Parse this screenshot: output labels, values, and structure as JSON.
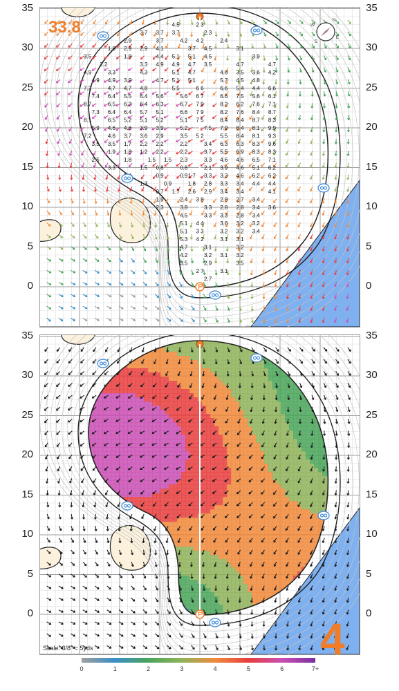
{
  "hole": {
    "number": "4",
    "total_length": "33.8"
  },
  "scale_note": "Scale: 3/8\" = 5yds",
  "y_axis_labels": [
    "35",
    "30",
    "25",
    "20",
    "15",
    "10",
    "5",
    "0"
  ],
  "compass": {
    "letters": [
      "N",
      "E",
      "S",
      "W"
    ]
  },
  "colorbar": {
    "labels": [
      "0",
      "1",
      "2",
      "3",
      "4",
      "5",
      "6",
      "7+"
    ],
    "colors": [
      "#9e9e9e",
      "#3b8fc9",
      "#4aa55a",
      "#8fb35a",
      "#f08a3c",
      "#e83e3e",
      "#c94fb4",
      "#7a2fa0"
    ]
  },
  "colors": {
    "green_outline": "#222222",
    "water": "#7fb0ef",
    "bunker": "#fbf1dc",
    "accent": "#f07d2a",
    "sprinkler": "#4a90d9"
  },
  "grid_values": [
    {
      "x": -3,
      "y": 33,
      "v": "4.5"
    },
    {
      "x": 0,
      "y": 33,
      "v": "2.3"
    },
    {
      "x": -7,
      "y": 32,
      "v": "3.7"
    },
    {
      "x": -5,
      "y": 32,
      "v": "3.7"
    },
    {
      "x": -3,
      "y": 32,
      "v": "3.7"
    },
    {
      "x": 1,
      "y": 32,
      "v": "2.3"
    },
    {
      "x": -9,
      "y": 31,
      "v": "2.9"
    },
    {
      "x": -5,
      "y": 31,
      "v": "3.7"
    },
    {
      "x": -2,
      "y": 31,
      "v": "4.2"
    },
    {
      "x": 0,
      "y": 31,
      "v": "4.2"
    },
    {
      "x": 3,
      "y": 31,
      "v": "2.4"
    },
    {
      "x": -11,
      "y": 30,
      "v": "1.8"
    },
    {
      "x": -9,
      "y": 30,
      "v": "2.9"
    },
    {
      "x": -7,
      "y": 30,
      "v": "2.9"
    },
    {
      "x": -5,
      "y": 30,
      "v": "4.1"
    },
    {
      "x": -1,
      "y": 30,
      "v": "3.7"
    },
    {
      "x": 1,
      "y": 30,
      "v": "4.5"
    },
    {
      "x": 5,
      "y": 30,
      "v": "3.1"
    },
    {
      "x": -14,
      "y": 29,
      "v": "3.5"
    },
    {
      "x": -9,
      "y": 29,
      "v": "1.8"
    },
    {
      "x": -5,
      "y": 29,
      "v": "4.4"
    },
    {
      "x": -3,
      "y": 29,
      "v": "5.1"
    },
    {
      "x": -1,
      "y": 29,
      "v": "5.1"
    },
    {
      "x": 1,
      "y": 29,
      "v": "4.5"
    },
    {
      "x": 7,
      "y": 29,
      "v": "3.9"
    },
    {
      "x": -12,
      "y": 28,
      "v": "2.2"
    },
    {
      "x": -7,
      "y": 28,
      "v": "3.3"
    },
    {
      "x": -5,
      "y": 28,
      "v": "4.9"
    },
    {
      "x": -3,
      "y": 28,
      "v": "4.9"
    },
    {
      "x": -1,
      "y": 28,
      "v": "4.7"
    },
    {
      "x": 1,
      "y": 28,
      "v": "3.5"
    },
    {
      "x": 5,
      "y": 28,
      "v": "4.7"
    },
    {
      "x": 9,
      "y": 28,
      "v": "4.7"
    },
    {
      "x": -14,
      "y": 27,
      "v": "4.9"
    },
    {
      "x": -11,
      "y": 27,
      "v": "3.3"
    },
    {
      "x": -7,
      "y": 27,
      "v": "4.3"
    },
    {
      "x": -3,
      "y": 27,
      "v": "5.1"
    },
    {
      "x": -1,
      "y": 27,
      "v": "4.7"
    },
    {
      "x": 3,
      "y": 27,
      "v": "4.6"
    },
    {
      "x": 5,
      "y": 27,
      "v": "3.5"
    },
    {
      "x": 7,
      "y": 27,
      "v": "3.6"
    },
    {
      "x": 9,
      "y": 27,
      "v": "4.2"
    },
    {
      "x": -13,
      "y": 26,
      "v": "4.9"
    },
    {
      "x": -11,
      "y": 26,
      "v": "4.9"
    },
    {
      "x": -9,
      "y": 26,
      "v": "3.9"
    },
    {
      "x": -5,
      "y": 26,
      "v": "4.7"
    },
    {
      "x": -3,
      "y": 26,
      "v": "5.1"
    },
    {
      "x": -1,
      "y": 26,
      "v": "5.1"
    },
    {
      "x": 3,
      "y": 26,
      "v": "5.7"
    },
    {
      "x": 5,
      "y": 26,
      "v": "4.5"
    },
    {
      "x": 7,
      "y": 26,
      "v": "4.8"
    },
    {
      "x": -14,
      "y": 25,
      "v": "7.2"
    },
    {
      "x": -11,
      "y": 25,
      "v": "4.7"
    },
    {
      "x": -9,
      "y": 25,
      "v": "4.7"
    },
    {
      "x": -7,
      "y": 25,
      "v": "4.8"
    },
    {
      "x": -3,
      "y": 25,
      "v": "5.5"
    },
    {
      "x": 0,
      "y": 25,
      "v": "6.6"
    },
    {
      "x": 3,
      "y": 25,
      "v": "6.6"
    },
    {
      "x": 5,
      "y": 25,
      "v": "5.4"
    },
    {
      "x": 7,
      "y": 25,
      "v": "4.4"
    },
    {
      "x": 9,
      "y": 25,
      "v": "6.6"
    },
    {
      "x": -13,
      "y": 24,
      "v": "7.4"
    },
    {
      "x": -11,
      "y": 24,
      "v": "6.4"
    },
    {
      "x": -9,
      "y": 24,
      "v": "5.5"
    },
    {
      "x": -7,
      "y": 24,
      "v": "6.4"
    },
    {
      "x": -5,
      "y": 24,
      "v": "5.6"
    },
    {
      "x": -2,
      "y": 24,
      "v": "5.6"
    },
    {
      "x": 0,
      "y": 24,
      "v": "6.7"
    },
    {
      "x": 3,
      "y": 24,
      "v": "6.6"
    },
    {
      "x": 5,
      "y": 24,
      "v": "7.5"
    },
    {
      "x": 7,
      "y": 24,
      "v": "5.6"
    },
    {
      "x": 9,
      "y": 24,
      "v": "6.1"
    },
    {
      "x": -14,
      "y": 23,
      "v": "8.7"
    },
    {
      "x": -11,
      "y": 23,
      "v": "6.5"
    },
    {
      "x": -9,
      "y": 23,
      "v": "6.3"
    },
    {
      "x": -7,
      "y": 23,
      "v": "6.4"
    },
    {
      "x": -5,
      "y": 23,
      "v": "6.3"
    },
    {
      "x": -2,
      "y": 23,
      "v": "6.7"
    },
    {
      "x": 0,
      "y": 23,
      "v": "7.9"
    },
    {
      "x": 3,
      "y": 23,
      "v": "8.2"
    },
    {
      "x": 5,
      "y": 23,
      "v": "6.2"
    },
    {
      "x": 7,
      "y": 23,
      "v": "7.6"
    },
    {
      "x": 9,
      "y": 23,
      "v": "7.1"
    },
    {
      "x": -13,
      "y": 22,
      "v": "7.3"
    },
    {
      "x": -11,
      "y": 22,
      "v": "6.4"
    },
    {
      "x": -9,
      "y": 22,
      "v": "6.4"
    },
    {
      "x": -7,
      "y": 22,
      "v": "5.7"
    },
    {
      "x": -5,
      "y": 22,
      "v": "5.1"
    },
    {
      "x": -2,
      "y": 22,
      "v": "6.6"
    },
    {
      "x": 0,
      "y": 22,
      "v": "7.9"
    },
    {
      "x": 3,
      "y": 22,
      "v": "8.2"
    },
    {
      "x": 5,
      "y": 22,
      "v": "7.6"
    },
    {
      "x": 7,
      "y": 22,
      "v": "8.4"
    },
    {
      "x": 9,
      "y": 22,
      "v": "8.7"
    },
    {
      "x": -14,
      "y": 21,
      "v": "8.1"
    },
    {
      "x": -11,
      "y": 21,
      "v": "6.5"
    },
    {
      "x": -9,
      "y": 21,
      "v": "5.2"
    },
    {
      "x": -7,
      "y": 21,
      "v": "5.1"
    },
    {
      "x": -5,
      "y": 21,
      "v": "5.2"
    },
    {
      "x": -2,
      "y": 21,
      "v": "5.1"
    },
    {
      "x": 0,
      "y": 21,
      "v": "7.5"
    },
    {
      "x": 3,
      "y": 21,
      "v": "8.4"
    },
    {
      "x": 5,
      "y": 21,
      "v": "8.4"
    },
    {
      "x": 7,
      "y": 21,
      "v": "8.7"
    },
    {
      "x": 9,
      "y": 21,
      "v": "8.3"
    },
    {
      "x": -13,
      "y": 20,
      "v": "5.9"
    },
    {
      "x": -11,
      "y": 20,
      "v": "4.6"
    },
    {
      "x": -9,
      "y": 20,
      "v": "4.6"
    },
    {
      "x": -7,
      "y": 20,
      "v": "3.9"
    },
    {
      "x": -5,
      "y": 20,
      "v": "3.9"
    },
    {
      "x": -2,
      "y": 20,
      "v": "5.2"
    },
    {
      "x": 1,
      "y": 20,
      "v": "7.5"
    },
    {
      "x": 3,
      "y": 20,
      "v": "7.9"
    },
    {
      "x": 5,
      "y": 20,
      "v": "8.4"
    },
    {
      "x": 7,
      "y": 20,
      "v": "8.1"
    },
    {
      "x": 9,
      "y": 20,
      "v": "9.9"
    },
    {
      "x": -14,
      "y": 19,
      "v": "7.2"
    },
    {
      "x": -11,
      "y": 19,
      "v": "4.6"
    },
    {
      "x": -9,
      "y": 19,
      "v": "3.7"
    },
    {
      "x": -7,
      "y": 19,
      "v": "3.6"
    },
    {
      "x": -5,
      "y": 19,
      "v": "2.9"
    },
    {
      "x": -2,
      "y": 19,
      "v": "3.5"
    },
    {
      "x": 0,
      "y": 19,
      "v": "5.2"
    },
    {
      "x": 3,
      "y": 19,
      "v": "5.5"
    },
    {
      "x": 5,
      "y": 19,
      "v": "8.4"
    },
    {
      "x": 7,
      "y": 19,
      "v": "8.1"
    },
    {
      "x": 9,
      "y": 19,
      "v": "9.3"
    },
    {
      "x": -13,
      "y": 18,
      "v": "3.5"
    },
    {
      "x": -11,
      "y": 18,
      "v": "3.5"
    },
    {
      "x": -9,
      "y": 18,
      "v": "1.7"
    },
    {
      "x": -7,
      "y": 18,
      "v": "2.2"
    },
    {
      "x": -5,
      "y": 18,
      "v": "2.2"
    },
    {
      "x": -2,
      "y": 18,
      "v": "2.2"
    },
    {
      "x": 1,
      "y": 18,
      "v": "3.4"
    },
    {
      "x": 3,
      "y": 18,
      "v": "6.3"
    },
    {
      "x": 5,
      "y": 18,
      "v": "6.3"
    },
    {
      "x": 7,
      "y": 18,
      "v": "8.3"
    },
    {
      "x": 9,
      "y": 18,
      "v": "9.6"
    },
    {
      "x": -11,
      "y": 17,
      "v": "1.9"
    },
    {
      "x": -9,
      "y": 17,
      "v": "1.8"
    },
    {
      "x": -7,
      "y": 17,
      "v": "1.2"
    },
    {
      "x": -5,
      "y": 17,
      "v": "2.2"
    },
    {
      "x": -2,
      "y": 17,
      "v": "2.2"
    },
    {
      "x": 1,
      "y": 17,
      "v": "3.7"
    },
    {
      "x": 3,
      "y": 17,
      "v": "5.5"
    },
    {
      "x": 5,
      "y": 17,
      "v": "6.9"
    },
    {
      "x": 7,
      "y": 17,
      "v": "8.3"
    },
    {
      "x": 9,
      "y": 17,
      "v": "8.3"
    },
    {
      "x": -13,
      "y": 16,
      "v": "2.5"
    },
    {
      "x": -9,
      "y": 16,
      "v": "1.8"
    },
    {
      "x": -6,
      "y": 16,
      "v": "1.5"
    },
    {
      "x": -4,
      "y": 16,
      "v": "1.5"
    },
    {
      "x": -2,
      "y": 16,
      "v": "2.3"
    },
    {
      "x": 1,
      "y": 16,
      "v": "3.3"
    },
    {
      "x": 3,
      "y": 16,
      "v": "4.6"
    },
    {
      "x": 5,
      "y": 16,
      "v": "4.6"
    },
    {
      "x": 7,
      "y": 16,
      "v": "6.5"
    },
    {
      "x": 9,
      "y": 16,
      "v": "7.1"
    },
    {
      "x": -11,
      "y": 15,
      "v": "3.3"
    },
    {
      "x": -7,
      "y": 15,
      "v": "1.5"
    },
    {
      "x": -5,
      "y": 15,
      "v": "0.8"
    },
    {
      "x": -2,
      "y": 15,
      "v": "0.8"
    },
    {
      "x": 1,
      "y": 15,
      "v": "2.1"
    },
    {
      "x": 3,
      "y": 15,
      "v": "3.9"
    },
    {
      "x": 5,
      "y": 15,
      "v": "4.6"
    },
    {
      "x": 7,
      "y": 15,
      "v": "5.1"
    },
    {
      "x": 9,
      "y": 15,
      "v": "6.2"
    },
    {
      "x": -9,
      "y": 14,
      "v": "2.4"
    },
    {
      "x": -5,
      "y": 14,
      "v": "0.9"
    },
    {
      "x": -2,
      "y": 14,
      "v": "0.9"
    },
    {
      "x": -1,
      "y": 14,
      "v": "1.7"
    },
    {
      "x": 1,
      "y": 14,
      "v": "3.3"
    },
    {
      "x": 3,
      "y": 14,
      "v": "3.3"
    },
    {
      "x": 5,
      "y": 14,
      "v": "4.6"
    },
    {
      "x": 7,
      "y": 14,
      "v": "6.2"
    },
    {
      "x": 9,
      "y": 14,
      "v": "6.2"
    },
    {
      "x": -7,
      "y": 13,
      "v": "1.3"
    },
    {
      "x": -4,
      "y": 13,
      "v": "0.9"
    },
    {
      "x": -1,
      "y": 13,
      "v": "1.8"
    },
    {
      "x": 1,
      "y": 13,
      "v": "2.8"
    },
    {
      "x": 3,
      "y": 13,
      "v": "3.3"
    },
    {
      "x": 5,
      "y": 13,
      "v": "3.4"
    },
    {
      "x": 7,
      "y": 13,
      "v": "4.4"
    },
    {
      "x": 9,
      "y": 13,
      "v": "4.4"
    },
    {
      "x": -5,
      "y": 12,
      "v": "0.7"
    },
    {
      "x": -3,
      "y": 12,
      "v": "1.7"
    },
    {
      "x": -1,
      "y": 12,
      "v": "2.6"
    },
    {
      "x": 1,
      "y": 12,
      "v": "2.9"
    },
    {
      "x": 3,
      "y": 12,
      "v": "3.4"
    },
    {
      "x": 5,
      "y": 12,
      "v": "3.4"
    },
    {
      "x": 9,
      "y": 12,
      "v": "4.1"
    },
    {
      "x": -5,
      "y": 11,
      "v": "1.9"
    },
    {
      "x": -2,
      "y": 11,
      "v": "2.4"
    },
    {
      "x": 0,
      "y": 11,
      "v": "3.8"
    },
    {
      "x": 3,
      "y": 11,
      "v": "2.8"
    },
    {
      "x": 5,
      "y": 11,
      "v": "2.7"
    },
    {
      "x": 7,
      "y": 11,
      "v": "3.4"
    },
    {
      "x": -5,
      "y": 10,
      "v": "2.3"
    },
    {
      "x": -2,
      "y": 10,
      "v": "3.8"
    },
    {
      "x": 1,
      "y": 10,
      "v": "3.3"
    },
    {
      "x": 3,
      "y": 10,
      "v": "2.8"
    },
    {
      "x": 5,
      "y": 10,
      "v": "2.8"
    },
    {
      "x": 7,
      "y": 10,
      "v": "3.4"
    },
    {
      "x": 9,
      "y": 10,
      "v": "3.6"
    },
    {
      "x": -2,
      "y": 9,
      "v": "4.5"
    },
    {
      "x": 1,
      "y": 9,
      "v": "3.3"
    },
    {
      "x": 3,
      "y": 9,
      "v": "3.3"
    },
    {
      "x": 5,
      "y": 9,
      "v": "2.8"
    },
    {
      "x": 7,
      "y": 9,
      "v": "3.4"
    },
    {
      "x": -2,
      "y": 8,
      "v": "5.1"
    },
    {
      "x": 0,
      "y": 8,
      "v": "4.4"
    },
    {
      "x": 3,
      "y": 8,
      "v": "3.6"
    },
    {
      "x": 5,
      "y": 8,
      "v": "3.2"
    },
    {
      "x": 7,
      "y": 8,
      "v": "3.2"
    },
    {
      "x": -2,
      "y": 7,
      "v": "5.1"
    },
    {
      "x": 0,
      "y": 7,
      "v": "3.3"
    },
    {
      "x": 3,
      "y": 7,
      "v": "3.2"
    },
    {
      "x": 5,
      "y": 7,
      "v": "3.2"
    },
    {
      "x": 7,
      "y": 7,
      "v": "3.4"
    },
    {
      "x": -2,
      "y": 6,
      "v": "5.3"
    },
    {
      "x": 0,
      "y": 6,
      "v": "4.2"
    },
    {
      "x": 3,
      "y": 6,
      "v": "3.1"
    },
    {
      "x": 5,
      "y": 6,
      "v": "3.1"
    },
    {
      "x": -2,
      "y": 5,
      "v": "4.7"
    },
    {
      "x": 1,
      "y": 5,
      "v": "3.1"
    },
    {
      "x": 5,
      "y": 5,
      "v": "3.2"
    },
    {
      "x": -2,
      "y": 4,
      "v": "4.2"
    },
    {
      "x": 1,
      "y": 4,
      "v": "3.2"
    },
    {
      "x": 3,
      "y": 4,
      "v": "3.1"
    },
    {
      "x": 5,
      "y": 4,
      "v": "3.2"
    },
    {
      "x": -2,
      "y": 3,
      "v": "3.5"
    },
    {
      "x": 1,
      "y": 3,
      "v": "2.9"
    },
    {
      "x": 5,
      "y": 3,
      "v": "3.5"
    },
    {
      "x": 0,
      "y": 2,
      "v": "2.7"
    },
    {
      "x": 3,
      "y": 2,
      "v": "3.1"
    },
    {
      "x": 1,
      "y": 1,
      "v": "2.7"
    }
  ]
}
